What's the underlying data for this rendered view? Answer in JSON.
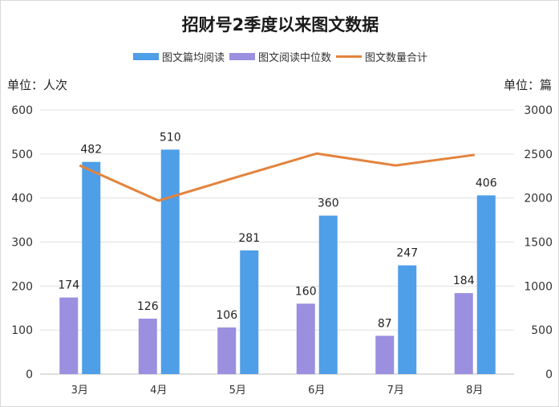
{
  "chart_data": {
    "type": "bar+line",
    "title": "招财号2季度以来图文数据",
    "categories": [
      "3月",
      "4月",
      "5月",
      "6月",
      "7月",
      "8月"
    ],
    "series": [
      {
        "name": "图文阅读中位数",
        "type": "bar",
        "axis": "left",
        "color": "#9b8fe0",
        "values": [
          174,
          126,
          106,
          160,
          87,
          184
        ]
      },
      {
        "name": "图文篇均阅读",
        "type": "bar",
        "axis": "left",
        "color": "#4f9ee8",
        "values": [
          482,
          510,
          281,
          360,
          247,
          406
        ]
      },
      {
        "name": "图文数量合计",
        "type": "line",
        "axis": "right",
        "color": "#e2843e",
        "values": [
          2370,
          1970,
          2240,
          2505,
          2370,
          2490
        ]
      }
    ],
    "legend_order": [
      "图文篇均阅读",
      "图文阅读中位数",
      "图文数量合计"
    ],
    "left_axis": {
      "label": "单位：人次",
      "ylim": [
        0,
        600
      ],
      "ticks": [
        0,
        100,
        200,
        300,
        400,
        500,
        600
      ]
    },
    "right_axis": {
      "label": "单位：篇",
      "ylim": [
        0,
        3000
      ],
      "ticks": [
        0,
        500,
        1000,
        1500,
        2000,
        2500,
        3000
      ]
    },
    "grid": true,
    "legend_position": "top"
  }
}
